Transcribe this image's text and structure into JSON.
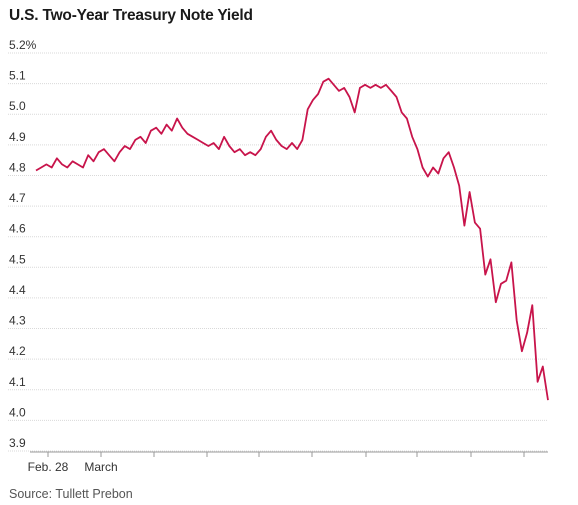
{
  "title": "U.S. Two-Year Treasury Note Yield",
  "source": "Source: Tullett Prebon",
  "colors": {
    "line": "#c8144b",
    "grid": "#d9d9d9",
    "axis": "#999999"
  },
  "chart_data": {
    "type": "line",
    "title": "U.S. Two-Year Treasury Note Yield",
    "xlabel": "",
    "ylabel": "",
    "ylim": [
      3.9,
      5.2
    ],
    "y_ticks": [
      3.9,
      4.0,
      4.1,
      4.2,
      4.3,
      4.4,
      4.5,
      4.6,
      4.7,
      4.8,
      4.9,
      5.0,
      5.1,
      5.2
    ],
    "y_tick_labels": [
      "3.9",
      "4.0",
      "4.1",
      "4.2",
      "4.3",
      "4.4",
      "4.5",
      "4.6",
      "4.7",
      "4.8",
      "4.9",
      "5.0",
      "5.1",
      "5.2%"
    ],
    "x_range": [
      "Feb. 27",
      "Mar. 13"
    ],
    "x_ticks": [
      {
        "date": "Feb. 28",
        "label": "Feb. 28"
      },
      {
        "date": "Mar. 1",
        "label": "March"
      },
      {
        "date": "Mar. 2",
        "label": ""
      },
      {
        "date": "Mar. 3",
        "label": ""
      },
      {
        "date": "Mar. 6",
        "label": ""
      },
      {
        "date": "Mar. 7",
        "label": ""
      },
      {
        "date": "Mar. 8",
        "label": ""
      },
      {
        "date": "Mar. 9",
        "label": ""
      },
      {
        "date": "Mar. 10",
        "label": ""
      },
      {
        "date": "Mar. 13",
        "label": ""
      }
    ],
    "grid": true,
    "series": [
      {
        "values": [
          4.79,
          4.8,
          4.81,
          4.8,
          4.83,
          4.81,
          4.8,
          4.82,
          4.81,
          4.8,
          4.84,
          4.82,
          4.85,
          4.86,
          4.84,
          4.82,
          4.85,
          4.87,
          4.86,
          4.89,
          4.9,
          4.88,
          4.92,
          4.93,
          4.91,
          4.94,
          4.92,
          4.96,
          4.93,
          4.91,
          4.9,
          4.89,
          4.88,
          4.87,
          4.88,
          4.86,
          4.9,
          4.87,
          4.85,
          4.86,
          4.84,
          4.85,
          4.84,
          4.86,
          4.9,
          4.92,
          4.89,
          4.87,
          4.86,
          4.88,
          4.86,
          4.89,
          4.99,
          5.02,
          5.04,
          5.08,
          5.09,
          5.07,
          5.05,
          5.06,
          5.03,
          4.98,
          5.06,
          5.07,
          5.06,
          5.07,
          5.06,
          5.07,
          5.05,
          5.03,
          4.98,
          4.96,
          4.9,
          4.86,
          4.8,
          4.77,
          4.8,
          4.78,
          4.83,
          4.85,
          4.8,
          4.74,
          4.61,
          4.72,
          4.62,
          4.6,
          4.45,
          4.5,
          4.36,
          4.42,
          4.43,
          4.49,
          4.3,
          4.2,
          4.26,
          4.35,
          4.1,
          4.15,
          4.04
        ]
      }
    ]
  }
}
